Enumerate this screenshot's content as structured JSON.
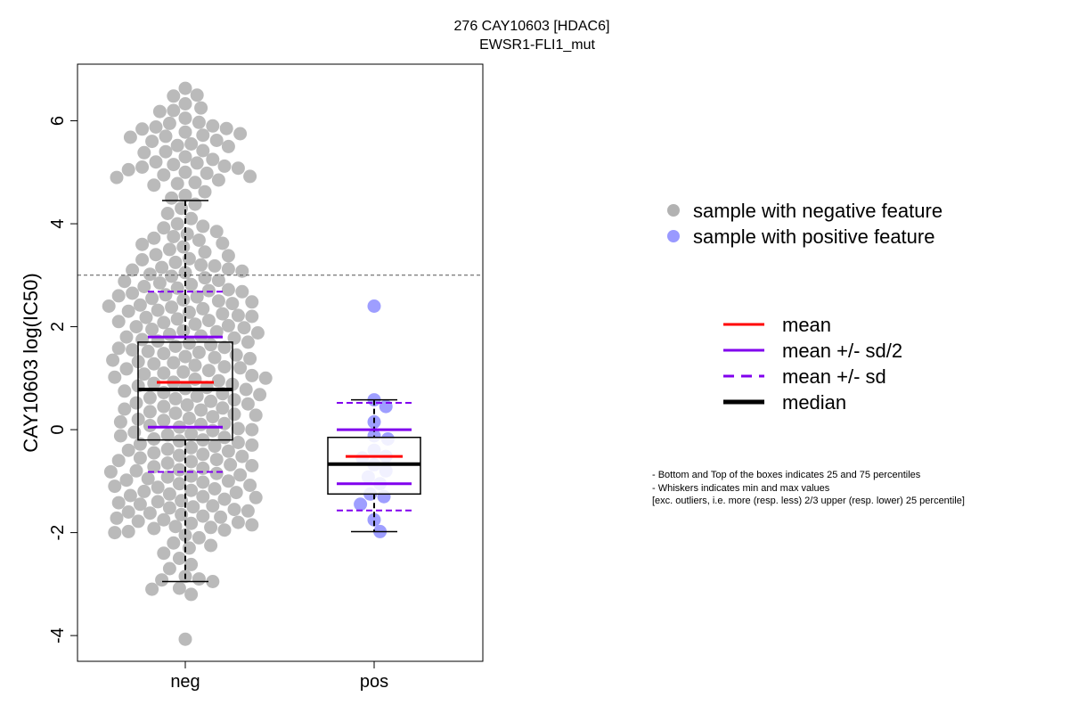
{
  "chart_data": {
    "type": "box-scatter",
    "title": [
      "276 CAY10603 [HDAC6]",
      "EWSR1-FLI1_mut"
    ],
    "ylabel": "CAY10603 log(IC50)",
    "xlabel": "",
    "categories": [
      "neg",
      "pos"
    ],
    "ylim": [
      -4.5,
      7.1
    ],
    "yticks": [
      -4,
      -2,
      0,
      2,
      4,
      6
    ],
    "threshold": 3,
    "colors": {
      "neg_point": "#b2b2b2",
      "pos_point": "#9999ff",
      "mean": "#ff0000",
      "sd": "#8000ee",
      "median": "#000000"
    },
    "groups": [
      {
        "name": "neg",
        "stats": {
          "min": -2.95,
          "q1": -0.2,
          "median": 0.78,
          "q3": 1.7,
          "max": 4.45,
          "mean": 0.92,
          "mean_minus_sd_half": 0.05,
          "mean_plus_sd_half": 1.8,
          "mean_minus_sd": -0.82,
          "mean_plus_sd": 2.68
        },
        "points": [
          6.63,
          6.48,
          6.5,
          6.33,
          6.2,
          6.25,
          6.18,
          6.05,
          5.95,
          5.97,
          5.9,
          5.88,
          5.85,
          5.84,
          5.78,
          5.75,
          5.72,
          5.7,
          5.68,
          5.62,
          5.6,
          5.55,
          5.52,
          5.5,
          5.42,
          5.4,
          5.38,
          5.3,
          5.25,
          5.2,
          5.18,
          5.15,
          5.12,
          5.1,
          5.08,
          5.05,
          5.0,
          4.98,
          4.95,
          4.92,
          4.9,
          4.85,
          4.8,
          4.78,
          4.75,
          4.62,
          4.55,
          4.5,
          4.38,
          4.3,
          4.2,
          4.1,
          4.0,
          3.95,
          3.92,
          3.85,
          3.8,
          3.75,
          3.72,
          3.68,
          3.62,
          3.6,
          3.55,
          3.5,
          3.45,
          3.4,
          3.38,
          3.32,
          3.3,
          3.25,
          3.2,
          3.18,
          3.15,
          3.12,
          3.1,
          3.08,
          3.05,
          3.02,
          2.98,
          2.95,
          2.9,
          2.88,
          2.85,
          2.82,
          2.78,
          2.75,
          2.72,
          2.7,
          2.68,
          2.65,
          2.62,
          2.6,
          2.58,
          2.55,
          2.52,
          2.5,
          2.48,
          2.45,
          2.42,
          2.4,
          2.38,
          2.35,
          2.32,
          2.3,
          2.28,
          2.25,
          2.22,
          2.2,
          2.18,
          2.15,
          2.12,
          2.1,
          2.08,
          2.05,
          2.02,
          2.0,
          1.98,
          1.95,
          1.92,
          1.9,
          1.88,
          1.85,
          1.82,
          1.8,
          1.78,
          1.75,
          1.72,
          1.7,
          1.68,
          1.65,
          1.62,
          1.6,
          1.58,
          1.55,
          1.52,
          1.5,
          1.48,
          1.45,
          1.42,
          1.4,
          1.38,
          1.35,
          1.32,
          1.3,
          1.28,
          1.25,
          1.22,
          1.2,
          1.18,
          1.15,
          1.12,
          1.1,
          1.08,
          1.05,
          1.02,
          1.0,
          0.98,
          0.95,
          0.92,
          0.9,
          0.88,
          0.85,
          0.82,
          0.8,
          0.78,
          0.75,
          0.72,
          0.7,
          0.68,
          0.65,
          0.62,
          0.6,
          0.58,
          0.55,
          0.52,
          0.5,
          0.48,
          0.45,
          0.42,
          0.4,
          0.38,
          0.35,
          0.32,
          0.3,
          0.28,
          0.25,
          0.22,
          0.2,
          0.18,
          0.15,
          0.12,
          0.1,
          0.08,
          0.05,
          0.02,
          0.0,
          -0.02,
          -0.05,
          -0.08,
          -0.1,
          -0.12,
          -0.15,
          -0.18,
          -0.2,
          -0.22,
          -0.25,
          -0.28,
          -0.3,
          -0.32,
          -0.35,
          -0.38,
          -0.4,
          -0.42,
          -0.45,
          -0.48,
          -0.5,
          -0.52,
          -0.55,
          -0.58,
          -0.6,
          -0.62,
          -0.65,
          -0.68,
          -0.7,
          -0.72,
          -0.75,
          -0.78,
          -0.8,
          -0.82,
          -0.85,
          -0.88,
          -0.9,
          -0.92,
          -0.95,
          -0.98,
          -1.0,
          -1.02,
          -1.05,
          -1.08,
          -1.1,
          -1.12,
          -1.15,
          -1.18,
          -1.2,
          -1.22,
          -1.25,
          -1.28,
          -1.3,
          -1.32,
          -1.35,
          -1.38,
          -1.4,
          -1.42,
          -1.45,
          -1.48,
          -1.5,
          -1.52,
          -1.55,
          -1.58,
          -1.6,
          -1.62,
          -1.65,
          -1.68,
          -1.7,
          -1.72,
          -1.75,
          -1.78,
          -1.8,
          -1.82,
          -1.85,
          -1.88,
          -1.9,
          -1.92,
          -1.95,
          -1.98,
          -2.0,
          -2.05,
          -2.1,
          -2.2,
          -2.25,
          -2.3,
          -2.4,
          -2.5,
          -2.62,
          -2.7,
          -2.85,
          -2.9,
          -2.92,
          -2.95,
          -3.08,
          -3.1,
          -3.2,
          -4.07
        ]
      },
      {
        "name": "pos",
        "stats": {
          "min": -1.98,
          "q1": -1.25,
          "median": -0.67,
          "q3": -0.15,
          "max": 0.58,
          "mean": -0.52,
          "mean_minus_sd_half": -1.05,
          "mean_plus_sd_half": 0.0,
          "mean_minus_sd": -1.57,
          "mean_plus_sd": 0.52
        },
        "points": [
          2.4,
          0.58,
          0.45,
          0.15,
          -0.12,
          -0.18,
          -0.4,
          -0.52,
          -0.55,
          -0.68,
          -0.8,
          -0.92,
          -1.05,
          -1.25,
          -1.3,
          -1.45,
          -1.75,
          -1.98
        ]
      }
    ],
    "legend": {
      "points": [
        {
          "label": "sample with negative feature",
          "color": "#b2b2b2"
        },
        {
          "label": "sample with positive feature",
          "color": "#9999ff"
        }
      ],
      "lines": [
        {
          "label": "mean",
          "color": "#ff0000",
          "style": "solid"
        },
        {
          "label": "mean +/- sd/2",
          "color": "#8000ee",
          "style": "solid"
        },
        {
          "label": "mean +/- sd",
          "color": "#8000ee",
          "style": "dashed"
        },
        {
          "label": "median",
          "color": "#000000",
          "style": "thick"
        }
      ]
    },
    "notes": [
      "- Bottom and Top of the boxes indicates 25 and 75 percentiles",
      "- Whiskers indicates min and max values",
      "[exc. outliers, i.e. more (resp. less) 2/3 upper (resp. lower) 25 percentile]"
    ]
  }
}
